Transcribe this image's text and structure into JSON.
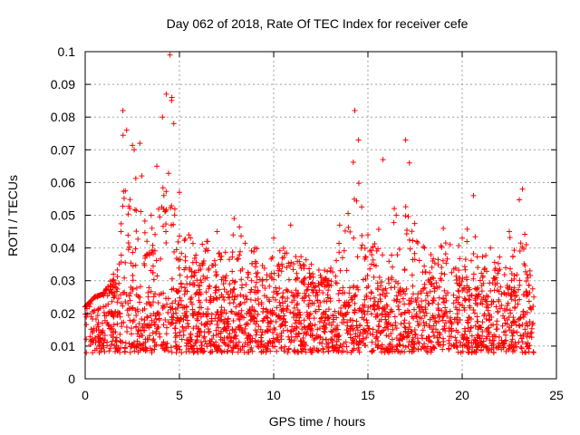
{
  "chart_data": {
    "type": "scatter",
    "title": "Day 062 of 2018, Rate Of TEC Index for receiver cefe",
    "xlabel": "GPS time / hours",
    "ylabel": "ROTI / TECUs",
    "xlim": [
      0,
      25
    ],
    "ylim": [
      0,
      0.1
    ],
    "grid": true,
    "marker": "+",
    "marker_color": "#ff0000",
    "x_ticks": [
      0,
      5,
      10,
      15,
      20,
      25
    ],
    "x_tick_labels": [
      "0",
      "5",
      "10",
      "15",
      "20",
      "25"
    ],
    "y_ticks": [
      0,
      0.01,
      0.02,
      0.03,
      0.04,
      0.05,
      0.06,
      0.07,
      0.08,
      0.09,
      0.1
    ],
    "y_tick_labels": [
      "0",
      "0.01",
      "0.02",
      "0.03",
      "0.04",
      "0.05",
      "0.06",
      "0.07",
      "0.08",
      "0.09",
      "0.1"
    ],
    "x_range_of_observations": [
      0,
      23.8
    ],
    "series": [
      {
        "name": "ROTI",
        "description_envelope": [
          {
            "x": 0.0,
            "y": 0.022
          },
          {
            "x": 0.5,
            "y": 0.025
          },
          {
            "x": 1.0,
            "y": 0.026
          },
          {
            "x": 1.5,
            "y": 0.032
          },
          {
            "x": 1.9,
            "y": 0.045
          },
          {
            "x": 2.0,
            "y": 0.082
          },
          {
            "x": 2.2,
            "y": 0.076
          },
          {
            "x": 2.6,
            "y": 0.07
          },
          {
            "x": 2.9,
            "y": 0.072
          },
          {
            "x": 3.0,
            "y": 0.062
          },
          {
            "x": 3.5,
            "y": 0.05
          },
          {
            "x": 3.8,
            "y": 0.065
          },
          {
            "x": 4.1,
            "y": 0.08
          },
          {
            "x": 4.3,
            "y": 0.087
          },
          {
            "x": 4.5,
            "y": 0.099
          },
          {
            "x": 4.6,
            "y": 0.086
          },
          {
            "x": 4.7,
            "y": 0.078
          },
          {
            "x": 5.0,
            "y": 0.057
          },
          {
            "x": 5.5,
            "y": 0.044
          },
          {
            "x": 6.5,
            "y": 0.042
          },
          {
            "x": 7.0,
            "y": 0.045
          },
          {
            "x": 7.9,
            "y": 0.049
          },
          {
            "x": 9.0,
            "y": 0.04
          },
          {
            "x": 10.0,
            "y": 0.043
          },
          {
            "x": 10.9,
            "y": 0.047
          },
          {
            "x": 12.0,
            "y": 0.035
          },
          {
            "x": 13.0,
            "y": 0.033
          },
          {
            "x": 13.5,
            "y": 0.047
          },
          {
            "x": 14.3,
            "y": 0.082
          },
          {
            "x": 14.5,
            "y": 0.073
          },
          {
            "x": 15.0,
            "y": 0.044
          },
          {
            "x": 15.8,
            "y": 0.067
          },
          {
            "x": 16.5,
            "y": 0.05
          },
          {
            "x": 17.0,
            "y": 0.073
          },
          {
            "x": 17.2,
            "y": 0.066
          },
          {
            "x": 18.0,
            "y": 0.04
          },
          {
            "x": 19.0,
            "y": 0.046
          },
          {
            "x": 20.0,
            "y": 0.043
          },
          {
            "x": 20.6,
            "y": 0.056
          },
          {
            "x": 21.5,
            "y": 0.04
          },
          {
            "x": 22.5,
            "y": 0.045
          },
          {
            "x": 23.2,
            "y": 0.058
          },
          {
            "x": 23.4,
            "y": 0.041
          },
          {
            "x": 23.8,
            "y": 0.025
          }
        ],
        "typical_band": [
          0.008,
          0.028
        ],
        "minimum": 0.004
      }
    ]
  }
}
